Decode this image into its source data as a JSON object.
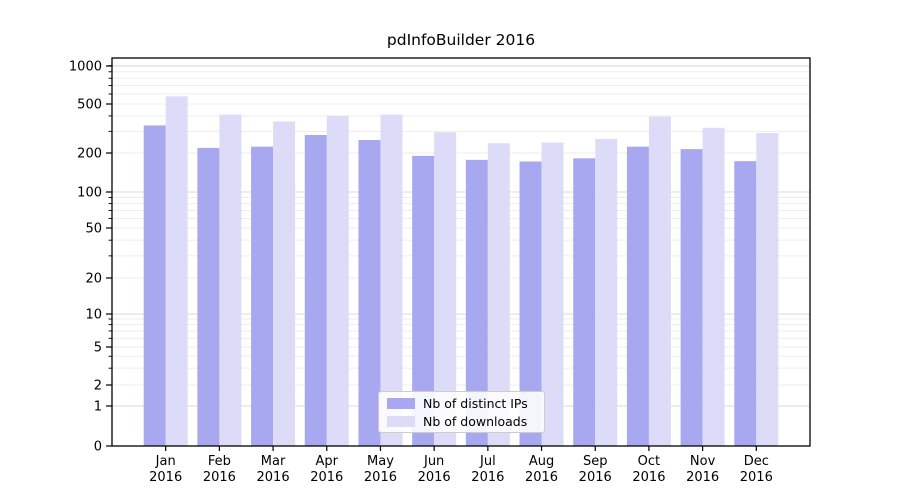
{
  "chart_data": {
    "type": "bar",
    "title": "pdInfoBuilder 2016",
    "scale": "symlog",
    "xlabel": "",
    "ylabel": "",
    "categories": [
      "Jan",
      "Feb",
      "Mar",
      "Apr",
      "May",
      "Jun",
      "Jul",
      "Aug",
      "Sep",
      "Oct",
      "Nov",
      "Dec"
    ],
    "category_year": "2016",
    "yticks": [
      0,
      1,
      2,
      5,
      10,
      20,
      50,
      100,
      200,
      500,
      1000
    ],
    "ylim": [
      0,
      1150
    ],
    "grid": "horizontal major+minor (log decades)",
    "legend_position": "lower center inside plot",
    "series": [
      {
        "name": "Nb of distinct IPs",
        "color": "#a8a8f0",
        "values": [
          335,
          220,
          225,
          280,
          255,
          190,
          177,
          172,
          182,
          225,
          215,
          173
        ]
      },
      {
        "name": "Nb of downloads",
        "color": "#dcdcf8",
        "values": [
          575,
          410,
          360,
          400,
          410,
          295,
          240,
          243,
          260,
          395,
          320,
          290
        ]
      }
    ],
    "colors": {
      "major_grid": "#d9d9d9",
      "minor_grid": "#ededed",
      "spine": "#000000",
      "text": "#000000",
      "background": "#ffffff"
    }
  }
}
